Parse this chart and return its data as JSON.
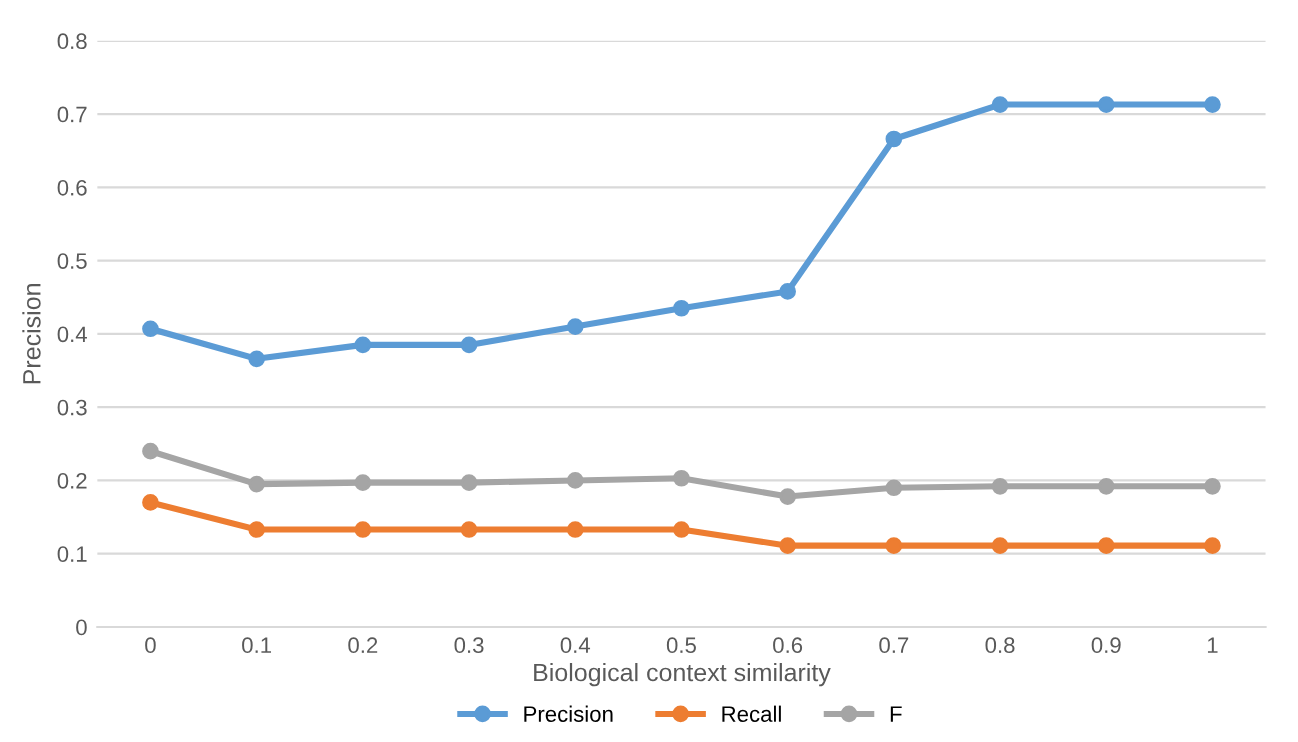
{
  "chart_data": {
    "type": "line",
    "xlabel": "Biological context similarity",
    "ylabel": "Precision",
    "categories": [
      "0",
      "0.1",
      "0.2",
      "0.3",
      "0.4",
      "0.5",
      "0.6",
      "0.7",
      "0.8",
      "0.9",
      "1"
    ],
    "series": [
      {
        "name": "Precision",
        "color": "#5b9bd5",
        "values": [
          0.407,
          0.366,
          0.385,
          0.385,
          0.41,
          0.435,
          0.458,
          0.666,
          0.713,
          0.713,
          0.713
        ]
      },
      {
        "name": "Recall",
        "color": "#ed7d31",
        "values": [
          0.17,
          0.133,
          0.133,
          0.133,
          0.133,
          0.133,
          0.111,
          0.111,
          0.111,
          0.111,
          0.111
        ]
      },
      {
        "name": "F",
        "color": "#a5a5a5",
        "values": [
          0.24,
          0.195,
          0.197,
          0.197,
          0.2,
          0.203,
          0.178,
          0.19,
          0.192,
          0.192,
          0.192
        ]
      }
    ],
    "ylim": [
      0,
      0.8
    ],
    "yticks": [
      0,
      0.1,
      0.2,
      0.3,
      0.4,
      0.5,
      0.6,
      0.7,
      0.8
    ],
    "grid": "y",
    "legend": "bottom",
    "marker": "circle",
    "line_style": "solid"
  }
}
